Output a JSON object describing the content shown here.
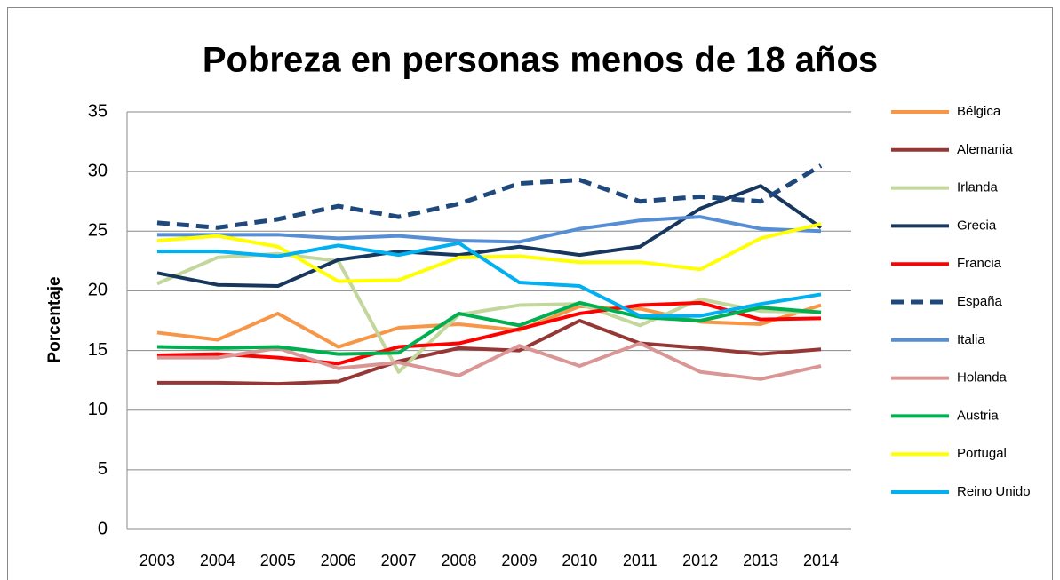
{
  "chart_data": {
    "type": "line",
    "title": "Pobreza en personas menos de 18 años",
    "y_label": "Porcentaje",
    "categories": [
      "2003",
      "2004",
      "2005",
      "2006",
      "2007",
      "2008",
      "2009",
      "2010",
      "2011",
      "2012",
      "2013",
      "2014"
    ],
    "ylim": [
      0,
      35
    ],
    "yticks": [
      0,
      5,
      10,
      15,
      20,
      25,
      30,
      35
    ],
    "grid": true,
    "legend": "right",
    "series": [
      {
        "name": "Bélgica",
        "color": "#f79646",
        "values": [
          16.5,
          15.9,
          18.1,
          15.3,
          16.9,
          17.2,
          16.7,
          18.7,
          18.5,
          17.4,
          17.2,
          18.8
        ]
      },
      {
        "name": "Alemania",
        "color": "#953735",
        "values": [
          12.3,
          12.3,
          12.2,
          12.4,
          14.1,
          15.2,
          15.0,
          17.5,
          15.6,
          15.2,
          14.7,
          15.1
        ]
      },
      {
        "name": "Irlanda",
        "color": "#c3d69b",
        "values": [
          20.6,
          22.8,
          23.1,
          22.5,
          13.2,
          18.0,
          18.8,
          18.9,
          17.1,
          19.3,
          18.3,
          18.2
        ]
      },
      {
        "name": "Grecia",
        "color": "#17375e",
        "values": [
          21.5,
          20.5,
          20.4,
          22.6,
          23.3,
          23.0,
          23.7,
          23.0,
          23.7,
          26.9,
          28.8,
          25.3
        ]
      },
      {
        "name": "Francia",
        "color": "#ff0000",
        "values": [
          14.6,
          14.7,
          14.4,
          13.9,
          15.3,
          15.6,
          16.8,
          18.1,
          18.8,
          19.0,
          17.6,
          17.7
        ]
      },
      {
        "name": "España",
        "color": "#1f497d",
        "dashed": true,
        "values": [
          25.7,
          25.3,
          26.0,
          27.1,
          26.2,
          27.3,
          29.0,
          29.3,
          27.5,
          27.9,
          27.5,
          30.5
        ]
      },
      {
        "name": "Italia",
        "color": "#558ed5",
        "values": [
          24.7,
          24.7,
          24.7,
          24.4,
          24.6,
          24.2,
          24.1,
          25.2,
          25.9,
          26.2,
          25.2,
          25.0
        ]
      },
      {
        "name": "Holanda",
        "color": "#d99694",
        "values": [
          14.4,
          14.4,
          15.2,
          13.5,
          14.0,
          12.9,
          15.4,
          13.7,
          15.6,
          13.2,
          12.6,
          13.7
        ]
      },
      {
        "name": "Austria",
        "color": "#00b050",
        "values": [
          15.3,
          15.2,
          15.3,
          14.7,
          14.8,
          18.1,
          17.1,
          19.0,
          17.8,
          17.5,
          18.6,
          18.2
        ]
      },
      {
        "name": "Portugal",
        "color": "#ffff00",
        "values": [
          24.2,
          24.6,
          23.7,
          20.8,
          20.9,
          22.8,
          22.9,
          22.4,
          22.4,
          21.8,
          24.4,
          25.6
        ]
      },
      {
        "name": "Reino Unido",
        "color": "#00b0f0",
        "values": [
          23.3,
          23.3,
          22.9,
          23.8,
          23.0,
          24.0,
          20.7,
          20.4,
          17.9,
          17.9,
          18.9,
          19.7
        ]
      }
    ]
  }
}
